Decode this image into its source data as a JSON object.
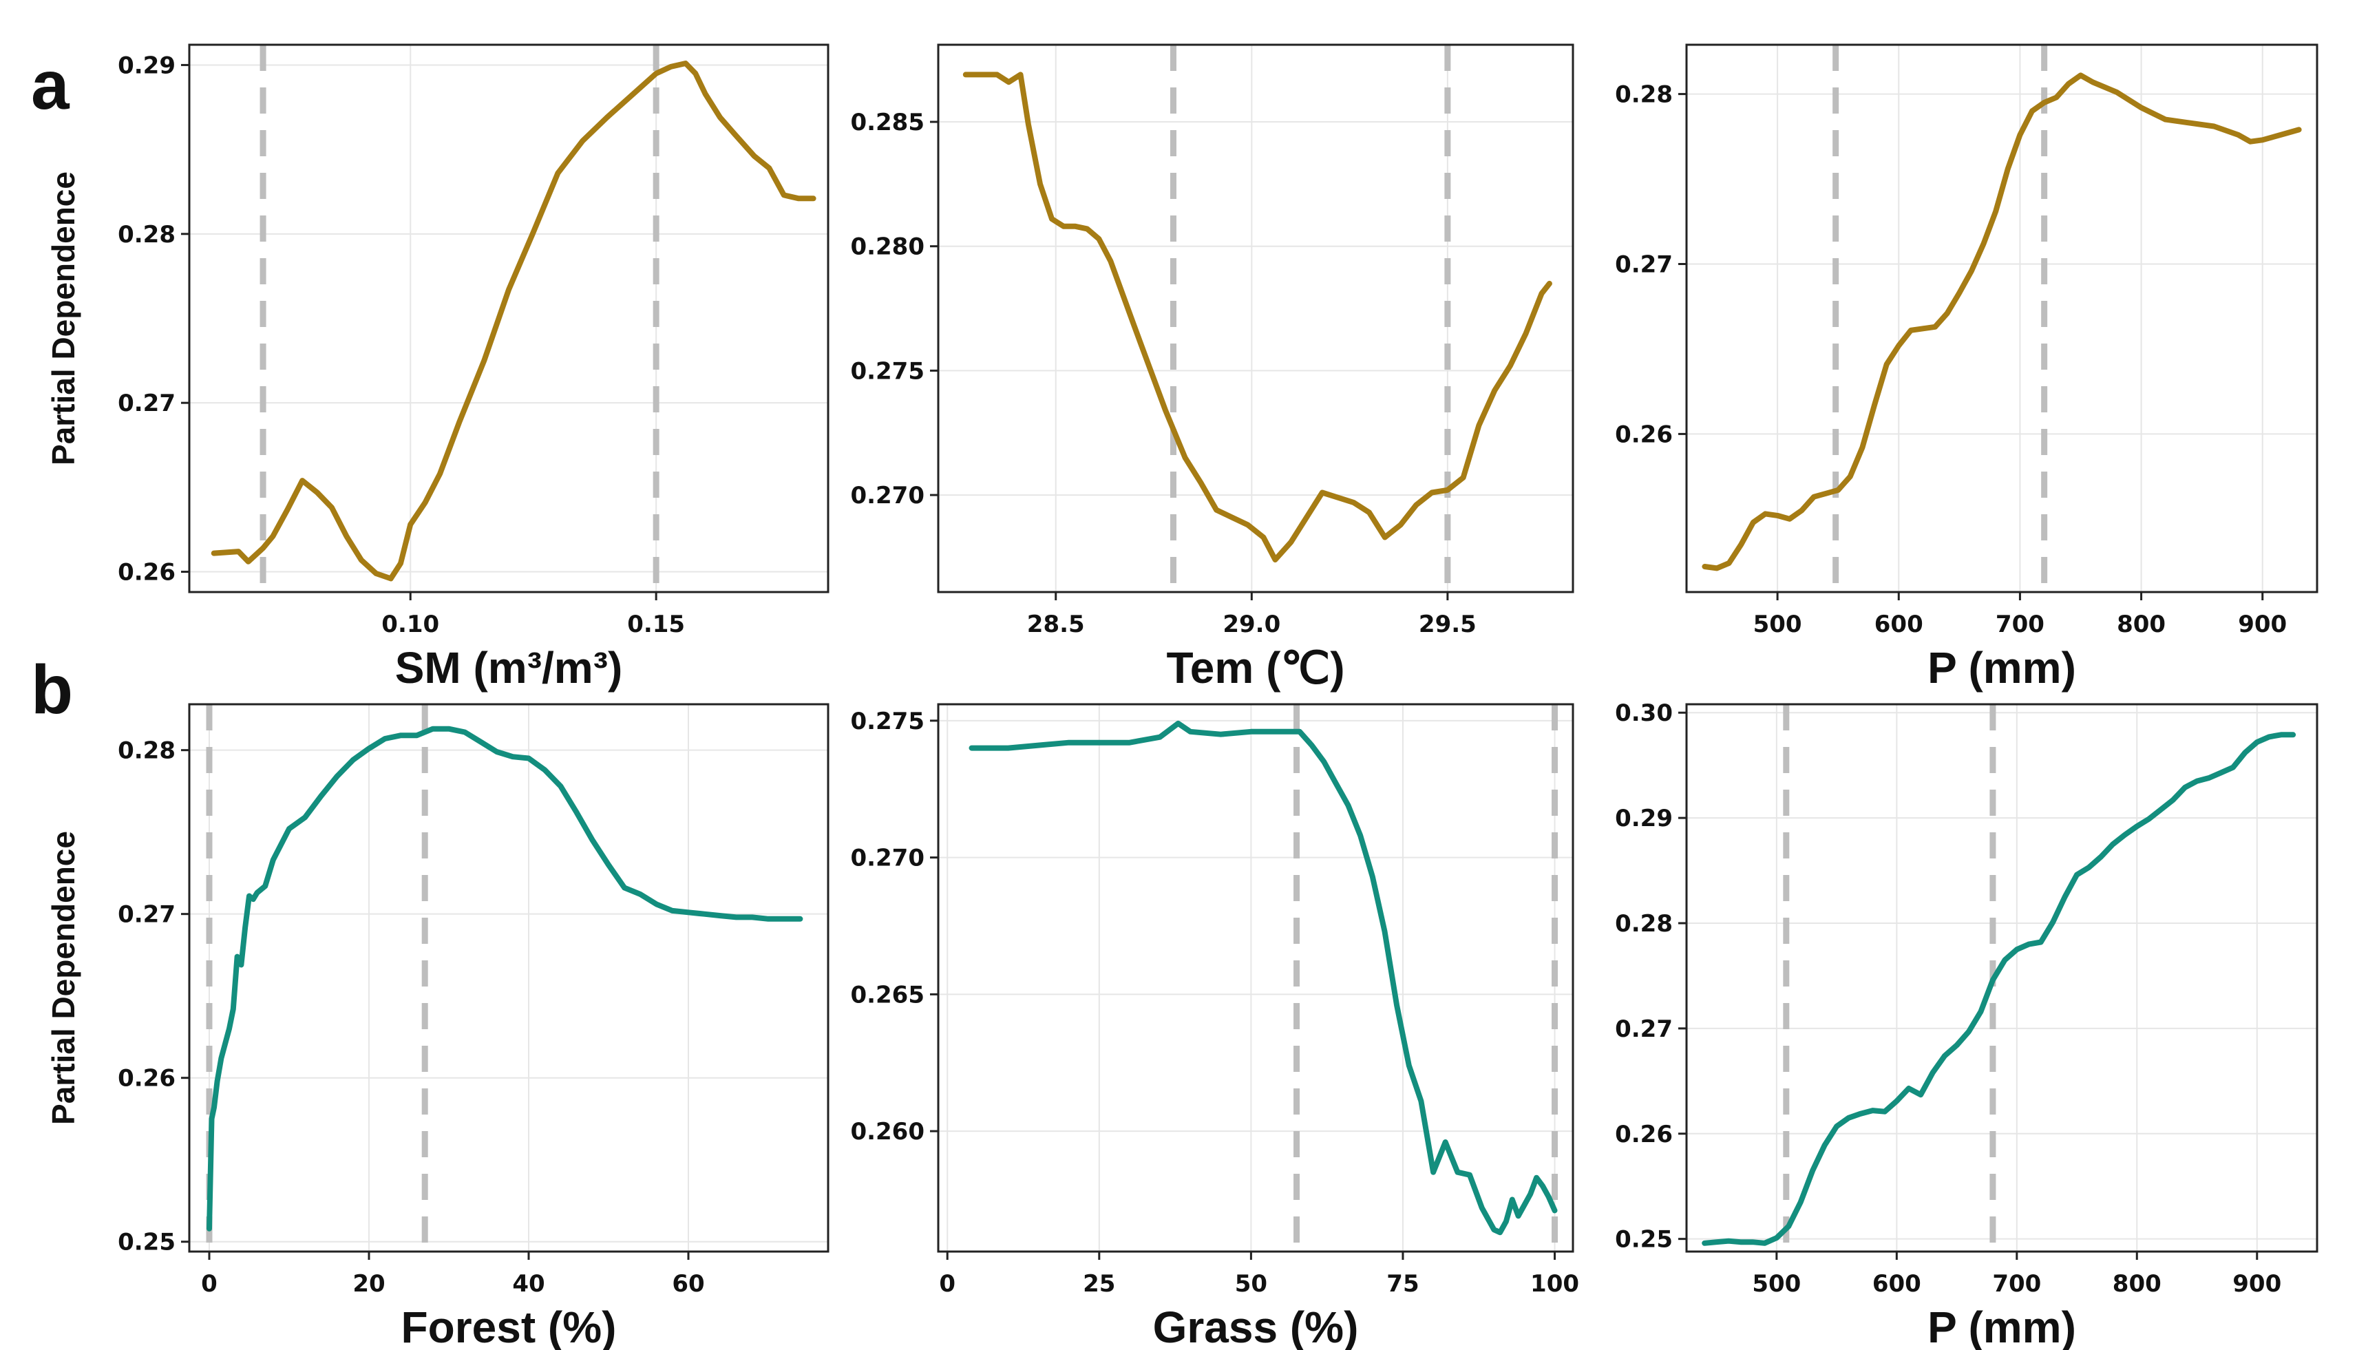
{
  "chart_data": [
    {
      "type": "line",
      "row": "a",
      "xlabel": "SM (m³/m³)",
      "ylabel": "Partial Dependence",
      "xlim": [
        0.055,
        0.185
      ],
      "ylim": [
        0.2588,
        0.2912
      ],
      "xticks": [
        0.1,
        0.15
      ],
      "xtick_labels": [
        "0.10",
        "0.15"
      ],
      "yticks": [
        0.26,
        0.27,
        0.28,
        0.29
      ],
      "ytick_labels": [
        "0.26",
        "0.27",
        "0.28",
        "0.29"
      ],
      "thresholds": [
        0.07,
        0.15
      ],
      "color": "#A67C14",
      "x": [
        0.06,
        0.065,
        0.067,
        0.07,
        0.072,
        0.075,
        0.078,
        0.081,
        0.084,
        0.087,
        0.09,
        0.093,
        0.096,
        0.098,
        0.1,
        0.103,
        0.106,
        0.11,
        0.115,
        0.12,
        0.125,
        0.13,
        0.135,
        0.14,
        0.145,
        0.15,
        0.153,
        0.156,
        0.158,
        0.16,
        0.163,
        0.166,
        0.17,
        0.173,
        0.176,
        0.179,
        0.182
      ],
      "y": [
        0.2611,
        0.2612,
        0.2606,
        0.2614,
        0.2621,
        0.2637,
        0.2654,
        0.2647,
        0.2638,
        0.2621,
        0.2607,
        0.2599,
        0.2596,
        0.2605,
        0.2628,
        0.2641,
        0.2658,
        0.2689,
        0.2725,
        0.2767,
        0.2801,
        0.2836,
        0.2855,
        0.2869,
        0.2882,
        0.2895,
        0.2899,
        0.2901,
        0.2895,
        0.2883,
        0.2869,
        0.2859,
        0.2846,
        0.2839,
        0.2823,
        0.2821,
        0.2821
      ]
    },
    {
      "type": "line",
      "row": "a",
      "xlabel": "Tem (℃)",
      "ylabel": "",
      "xlim": [
        28.2,
        29.82
      ],
      "ylim": [
        0.2661,
        0.2881
      ],
      "xticks": [
        28.5,
        29.0,
        29.5
      ],
      "xtick_labels": [
        "28.5",
        "29.0",
        "29.5"
      ],
      "yticks": [
        0.27,
        0.275,
        0.28,
        0.285
      ],
      "ytick_labels": [
        "0.270",
        "0.275",
        "0.280",
        "0.285"
      ],
      "thresholds": [
        28.8,
        29.5
      ],
      "color": "#A67C14",
      "x": [
        28.27,
        28.35,
        28.38,
        28.41,
        28.43,
        28.46,
        28.49,
        28.52,
        28.55,
        28.58,
        28.61,
        28.64,
        28.67,
        28.7,
        28.74,
        28.78,
        28.83,
        28.87,
        28.91,
        28.95,
        28.99,
        29.03,
        29.06,
        29.1,
        29.14,
        29.18,
        29.22,
        29.26,
        29.3,
        29.34,
        29.38,
        29.42,
        29.46,
        29.5,
        29.54,
        29.58,
        29.62,
        29.66,
        29.7,
        29.74,
        29.76
      ],
      "y": [
        0.2869,
        0.2869,
        0.2866,
        0.2869,
        0.2849,
        0.2825,
        0.2811,
        0.2808,
        0.2808,
        0.2807,
        0.2803,
        0.2794,
        0.2781,
        0.2768,
        0.2751,
        0.2734,
        0.2715,
        0.2705,
        0.2694,
        0.2691,
        0.2688,
        0.2683,
        0.2674,
        0.2681,
        0.2691,
        0.2701,
        0.2699,
        0.2697,
        0.2693,
        0.2683,
        0.2688,
        0.2696,
        0.2701,
        0.2702,
        0.2707,
        0.2728,
        0.2742,
        0.2752,
        0.2765,
        0.2781,
        0.2785
      ]
    },
    {
      "type": "line",
      "row": "a",
      "xlabel": "P (mm)",
      "ylabel": "",
      "xlim": [
        425,
        945
      ],
      "ylim": [
        0.2507,
        0.2829
      ],
      "xticks": [
        500,
        600,
        700,
        800,
        900
      ],
      "xtick_labels": [
        "500",
        "600",
        "700",
        "800",
        "900"
      ],
      "yticks": [
        0.26,
        0.27,
        0.28
      ],
      "ytick_labels": [
        "0.26",
        "0.27",
        "0.28"
      ],
      "thresholds": [
        548,
        720
      ],
      "color": "#A67C14",
      "x": [
        440,
        450,
        460,
        470,
        480,
        490,
        500,
        510,
        520,
        530,
        540,
        550,
        560,
        570,
        580,
        590,
        600,
        610,
        620,
        630,
        640,
        650,
        660,
        670,
        680,
        690,
        700,
        710,
        720,
        730,
        740,
        750,
        760,
        780,
        800,
        820,
        840,
        860,
        880,
        890,
        900,
        920,
        930
      ],
      "y": [
        0.2522,
        0.2521,
        0.2524,
        0.2535,
        0.2548,
        0.2553,
        0.2552,
        0.255,
        0.2555,
        0.2563,
        0.2565,
        0.2567,
        0.2575,
        0.2592,
        0.2617,
        0.2641,
        0.2652,
        0.2661,
        0.2662,
        0.2663,
        0.2671,
        0.2683,
        0.2696,
        0.2712,
        0.2731,
        0.2756,
        0.2776,
        0.279,
        0.2795,
        0.2798,
        0.2806,
        0.2811,
        0.2807,
        0.2801,
        0.2792,
        0.2785,
        0.2783,
        0.2781,
        0.2776,
        0.2772,
        0.2773,
        0.2777,
        0.2779
      ]
    },
    {
      "type": "line",
      "row": "b",
      "xlabel": "Forest (%)",
      "ylabel": "Partial Dependence",
      "xlim": [
        -2.5,
        77.5
      ],
      "ylim": [
        0.2494,
        0.2828
      ],
      "xticks": [
        0,
        20,
        40,
        60
      ],
      "xtick_labels": [
        "0",
        "20",
        "40",
        "60"
      ],
      "yticks": [
        0.25,
        0.26,
        0.27,
        0.28
      ],
      "ytick_labels": [
        "0.25",
        "0.26",
        "0.27",
        "0.28"
      ],
      "thresholds": [
        0,
        27
      ],
      "color": "#138E7E",
      "x": [
        0,
        0.3,
        0.6,
        1,
        1.5,
        2,
        2.5,
        3,
        3.5,
        4,
        4.5,
        5,
        5.5,
        6,
        7,
        8,
        10,
        12,
        14,
        16,
        18,
        20,
        22,
        24,
        26,
        28,
        30,
        32,
        34,
        36,
        38,
        40,
        42,
        44,
        46,
        48,
        50,
        52,
        54,
        56,
        58,
        60,
        62,
        64,
        66,
        68,
        70,
        72,
        74
      ],
      "y": [
        0.2508,
        0.2575,
        0.2582,
        0.2598,
        0.2612,
        0.2621,
        0.263,
        0.2642,
        0.2674,
        0.2669,
        0.2692,
        0.2711,
        0.2709,
        0.2713,
        0.2717,
        0.2733,
        0.2752,
        0.2759,
        0.2772,
        0.2784,
        0.2794,
        0.2801,
        0.2807,
        0.2809,
        0.2809,
        0.2813,
        0.2813,
        0.2811,
        0.2805,
        0.2799,
        0.2796,
        0.2795,
        0.2788,
        0.2778,
        0.2762,
        0.2745,
        0.273,
        0.2716,
        0.2712,
        0.2706,
        0.2702,
        0.2701,
        0.27,
        0.2699,
        0.2698,
        0.2698,
        0.2697,
        0.2697,
        0.2697
      ]
    },
    {
      "type": "line",
      "row": "b",
      "xlabel": "Grass (%)",
      "ylabel": "",
      "xlim": [
        -1.5,
        103
      ],
      "ylim": [
        0.2556,
        0.2756
      ],
      "xticks": [
        0,
        25,
        50,
        75,
        100
      ],
      "xtick_labels": [
        "0",
        "25",
        "50",
        "75",
        "100"
      ],
      "yticks": [
        0.26,
        0.265,
        0.27,
        0.275
      ],
      "ytick_labels": [
        "0.260",
        "0.265",
        "0.270",
        "0.275"
      ],
      "thresholds": [
        57.5,
        100
      ],
      "color": "#138E7E",
      "x": [
        4,
        10,
        15,
        20,
        25,
        30,
        35,
        38,
        40,
        45,
        50,
        55,
        58,
        60,
        62,
        64,
        66,
        68,
        70,
        72,
        74,
        76,
        78,
        80,
        82,
        84,
        86,
        88,
        90,
        91,
        92,
        93,
        94,
        95,
        96,
        97,
        98,
        99,
        100
      ],
      "y": [
        0.274,
        0.274,
        0.2741,
        0.2742,
        0.2742,
        0.2742,
        0.2744,
        0.2749,
        0.2746,
        0.2745,
        0.2746,
        0.2746,
        0.2746,
        0.2741,
        0.2735,
        0.2727,
        0.2719,
        0.2708,
        0.2693,
        0.2673,
        0.2646,
        0.2624,
        0.2611,
        0.2585,
        0.2596,
        0.2585,
        0.2584,
        0.2572,
        0.2564,
        0.2563,
        0.2567,
        0.2575,
        0.2569,
        0.2573,
        0.2577,
        0.2583,
        0.258,
        0.2576,
        0.2571
      ]
    },
    {
      "type": "line",
      "row": "b",
      "xlabel": "P (mm)",
      "ylabel": "",
      "xlim": [
        425,
        950
      ],
      "ylim": [
        0.2488,
        0.3008
      ],
      "xticks": [
        500,
        600,
        700,
        800,
        900
      ],
      "xtick_labels": [
        "500",
        "600",
        "700",
        "800",
        "900"
      ],
      "yticks": [
        0.25,
        0.26,
        0.27,
        0.28,
        0.29,
        0.3
      ],
      "ytick_labels": [
        "0.25",
        "0.26",
        "0.27",
        "0.28",
        "0.29",
        "0.30"
      ],
      "thresholds": [
        508,
        680
      ],
      "color": "#138E7E",
      "x": [
        440,
        450,
        460,
        470,
        480,
        490,
        500,
        510,
        520,
        530,
        540,
        550,
        560,
        570,
        580,
        590,
        600,
        610,
        620,
        630,
        640,
        650,
        660,
        670,
        680,
        690,
        700,
        710,
        720,
        730,
        740,
        750,
        760,
        770,
        780,
        790,
        800,
        810,
        820,
        830,
        840,
        850,
        860,
        870,
        880,
        890,
        900,
        910,
        920,
        930
      ],
      "y": [
        0.2496,
        0.2497,
        0.2498,
        0.2497,
        0.2497,
        0.2496,
        0.2501,
        0.2512,
        0.2535,
        0.2565,
        0.2589,
        0.2607,
        0.2615,
        0.2619,
        0.2622,
        0.2621,
        0.2631,
        0.2643,
        0.2637,
        0.2658,
        0.2674,
        0.2684,
        0.2697,
        0.2716,
        0.2746,
        0.2765,
        0.2775,
        0.278,
        0.2782,
        0.2801,
        0.2825,
        0.2846,
        0.2853,
        0.2863,
        0.2875,
        0.2884,
        0.2892,
        0.2899,
        0.2908,
        0.2917,
        0.2929,
        0.2935,
        0.2938,
        0.2943,
        0.2948,
        0.2962,
        0.2972,
        0.2977,
        0.2979,
        0.2979
      ]
    }
  ],
  "panel_labels": [
    "a",
    "b"
  ]
}
